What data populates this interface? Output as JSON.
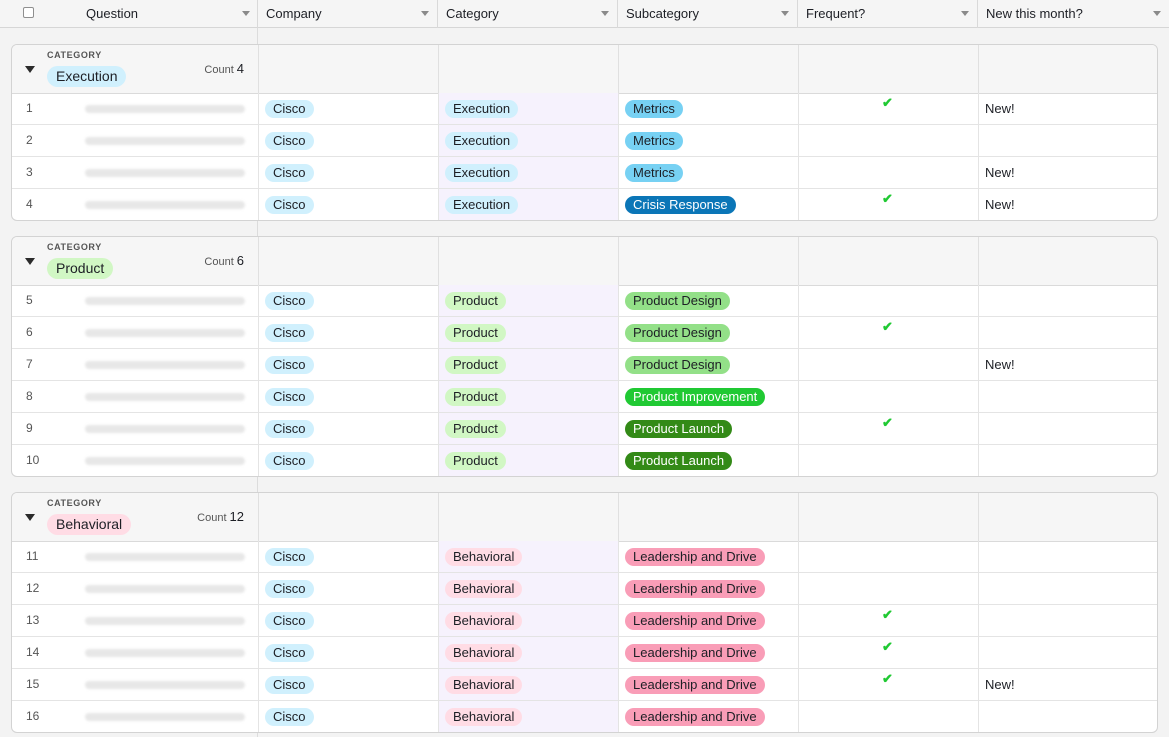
{
  "header": {
    "columns": [
      "Question",
      "Company",
      "Category",
      "Subcategory",
      "Frequent?",
      "New this month?"
    ]
  },
  "group_label": "CATEGORY",
  "count_label": "Count",
  "groups": [
    {
      "name": "Execution",
      "count": "4",
      "rows": [
        {
          "num": "1",
          "company": "Cisco",
          "category": "Execution",
          "subcategory": "Metrics",
          "frequent": true,
          "new": "New!"
        },
        {
          "num": "2",
          "company": "Cisco",
          "category": "Execution",
          "subcategory": "Metrics",
          "frequent": false,
          "new": ""
        },
        {
          "num": "3",
          "company": "Cisco",
          "category": "Execution",
          "subcategory": "Metrics",
          "frequent": false,
          "new": "New!"
        },
        {
          "num": "4",
          "company": "Cisco",
          "category": "Execution",
          "subcategory": "Crisis Response",
          "frequent": true,
          "new": "New!"
        }
      ]
    },
    {
      "name": "Product",
      "count": "6",
      "rows": [
        {
          "num": "5",
          "company": "Cisco",
          "category": "Product",
          "subcategory": "Product Design",
          "frequent": false,
          "new": ""
        },
        {
          "num": "6",
          "company": "Cisco",
          "category": "Product",
          "subcategory": "Product Design",
          "frequent": true,
          "new": ""
        },
        {
          "num": "7",
          "company": "Cisco",
          "category": "Product",
          "subcategory": "Product Design",
          "frequent": false,
          "new": "New!"
        },
        {
          "num": "8",
          "company": "Cisco",
          "category": "Product",
          "subcategory": "Product Improvement",
          "frequent": false,
          "new": ""
        },
        {
          "num": "9",
          "company": "Cisco",
          "category": "Product",
          "subcategory": "Product Launch",
          "frequent": true,
          "new": ""
        },
        {
          "num": "10",
          "company": "Cisco",
          "category": "Product",
          "subcategory": "Product Launch",
          "frequent": false,
          "new": ""
        }
      ]
    },
    {
      "name": "Behavioral",
      "count": "12",
      "rows": [
        {
          "num": "11",
          "company": "Cisco",
          "category": "Behavioral",
          "subcategory": "Leadership and Drive",
          "frequent": false,
          "new": ""
        },
        {
          "num": "12",
          "company": "Cisco",
          "category": "Behavioral",
          "subcategory": "Leadership and Drive",
          "frequent": false,
          "new": ""
        },
        {
          "num": "13",
          "company": "Cisco",
          "category": "Behavioral",
          "subcategory": "Leadership and Drive",
          "frequent": true,
          "new": ""
        },
        {
          "num": "14",
          "company": "Cisco",
          "category": "Behavioral",
          "subcategory": "Leadership and Drive",
          "frequent": true,
          "new": ""
        },
        {
          "num": "15",
          "company": "Cisco",
          "category": "Behavioral",
          "subcategory": "Leadership and Drive",
          "frequent": true,
          "new": "New!"
        },
        {
          "num": "16",
          "company": "Cisco",
          "category": "Behavioral",
          "subcategory": "Leadership and Drive",
          "frequent": false,
          "new": ""
        }
      ]
    }
  ],
  "colors": {
    "category_pills": {
      "Execution": "#d0f0fd",
      "Product": "#d1f7c4",
      "Behavioral": "#ffdce5"
    },
    "subcategory_pills": {
      "Metrics": "#77d1f3",
      "Crisis Response": "#0b76b7",
      "Product Design": "#93e088",
      "Product Improvement": "#20c933",
      "Product Launch": "#338a17",
      "Leadership and Drive": "#f99db7"
    },
    "company_pill": "#d0f0fd",
    "check": "#20c933"
  },
  "icons": {
    "row_check": "checkmark-icon",
    "group_toggle": "caret-down-icon",
    "column_menu": "chevron-down-icon"
  }
}
